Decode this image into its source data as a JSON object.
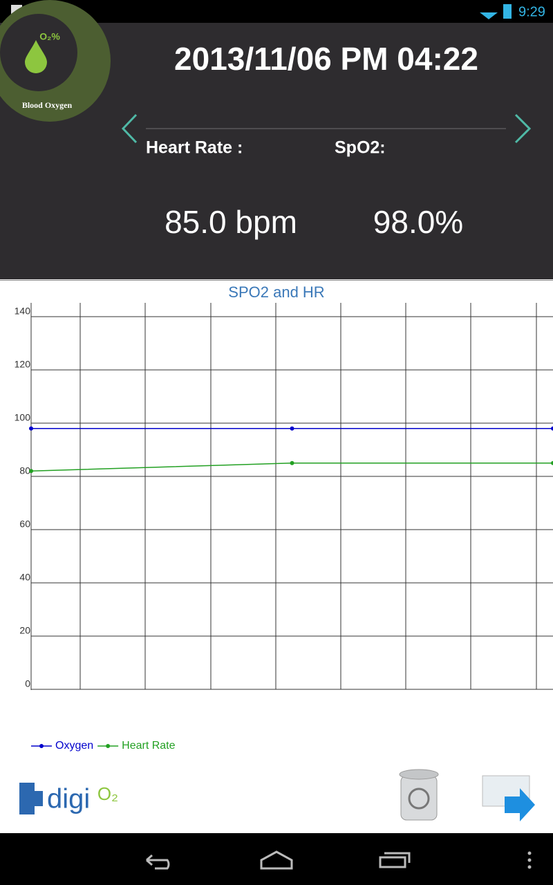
{
  "status_bar": {
    "time": "9:29"
  },
  "header": {
    "logo_badge": "O₂%",
    "logo_label": "Blood Oxygen",
    "datetime": "2013/11/06 PM 04:22",
    "heart_rate_label": "Heart Rate :",
    "spo2_label": "SpO2:",
    "heart_rate_value": "85.0 bpm",
    "spo2_value": "98.0%"
  },
  "chart_data": {
    "type": "line",
    "title": "SPO2 and HR",
    "categories": [
      null,
      null,
      null
    ],
    "series": [
      {
        "name": "Oxygen",
        "color": "#0000cc",
        "values": [
          98,
          98,
          98
        ]
      },
      {
        "name": "Heart Rate",
        "color": "#22a022",
        "values": [
          82,
          85,
          85
        ]
      }
    ],
    "ylim": [
      0,
      140
    ],
    "yticks": [
      0,
      20,
      40,
      60,
      80,
      100,
      120,
      140
    ],
    "grid": true
  },
  "footer": {
    "brand": "digi",
    "brand_mark": "O₂"
  }
}
